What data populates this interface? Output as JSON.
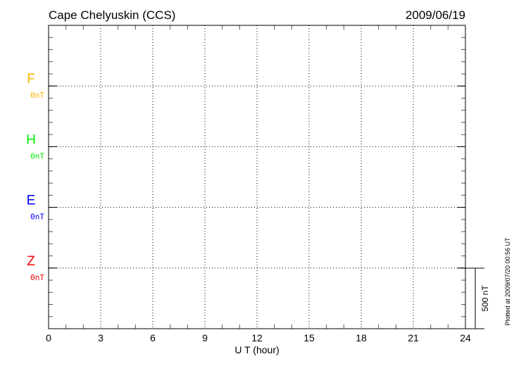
{
  "chart_data": {
    "type": "line",
    "title": "Cape Chelyuskin (CCS)",
    "date": "2009/06/19",
    "xlabel": "U T (hour)",
    "xlim": [
      0,
      24
    ],
    "xticks": [
      "0",
      "3",
      "6",
      "9",
      "12",
      "15",
      "18",
      "21",
      "24"
    ],
    "grid": true,
    "series": [
      {
        "name": "F",
        "baseline_label": "0nT",
        "color": "#ffb400",
        "values": []
      },
      {
        "name": "H",
        "baseline_label": "0nT",
        "color": "#00ee00",
        "values": []
      },
      {
        "name": "E",
        "baseline_label": "0nT",
        "color": "#0000ff",
        "values": []
      },
      {
        "name": "Z",
        "baseline_label": "0nT",
        "color": "#ee0000",
        "values": []
      }
    ],
    "scale_bar_label": "500 nT",
    "footer": "Plotted at 2009/07/20 00:56 UT"
  }
}
